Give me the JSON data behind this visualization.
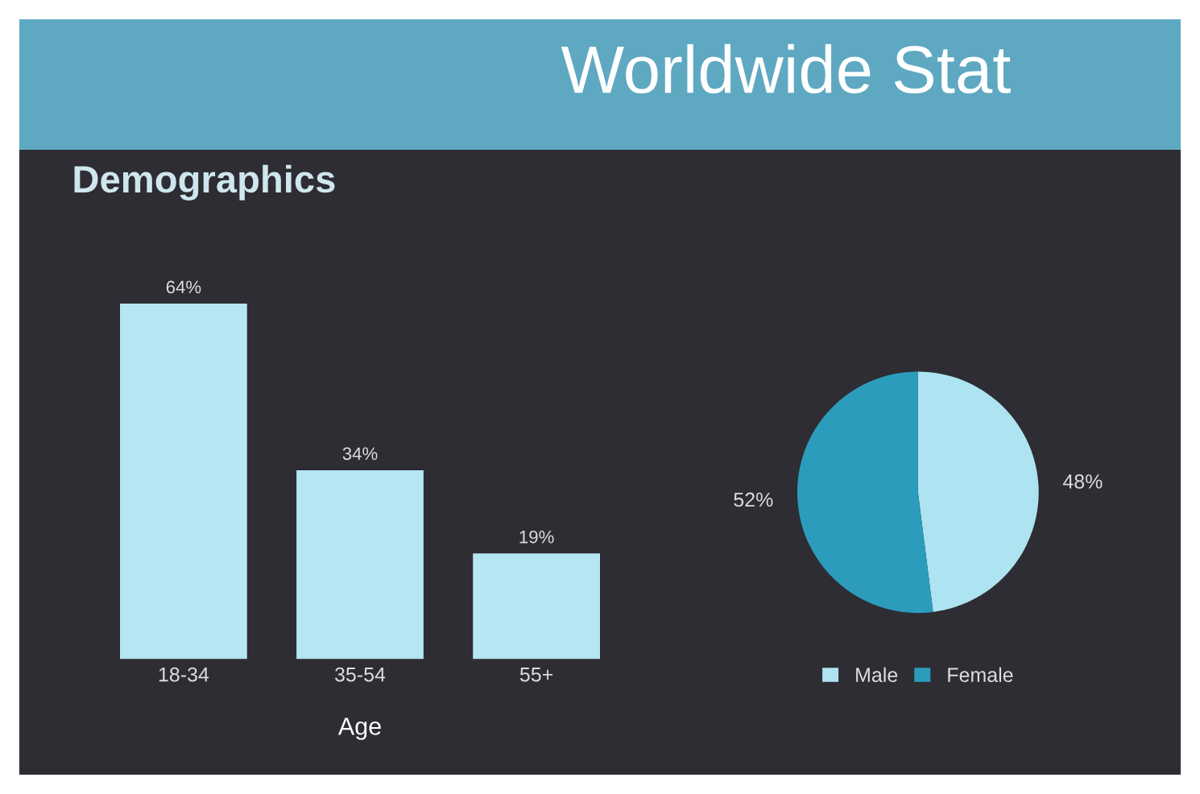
{
  "chart_data": [
    {
      "type": "bar",
      "title": "Worldwide Stat",
      "subtitle": "Demographics",
      "xlabel": "Age",
      "categories": [
        "18-34",
        "35-54",
        "55+"
      ],
      "values": [
        64,
        34,
        19
      ],
      "value_labels": [
        "64%",
        "34%",
        "19%"
      ],
      "color": "#b5e6f3"
    },
    {
      "type": "pie",
      "categories": [
        "Male",
        "Female"
      ],
      "values": [
        48,
        52
      ],
      "colors": [
        "#aee3f1",
        "#2c9cbc"
      ],
      "value_labels": [
        "48%",
        "52%"
      ],
      "legend": "bottom"
    }
  ]
}
